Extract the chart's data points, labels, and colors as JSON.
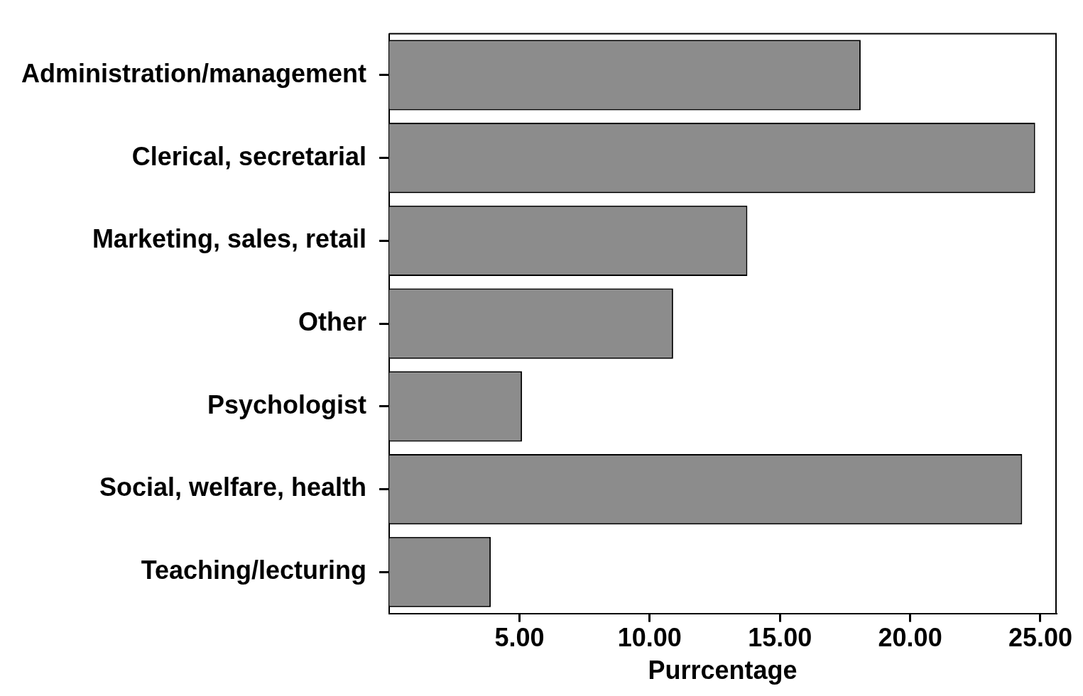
{
  "chart_data": {
    "type": "bar",
    "orientation": "horizontal",
    "xlabel": "Purrcentage",
    "categories": [
      "Administration/management",
      "Clerical, secretarial",
      "Marketing, sales, retail",
      "Other",
      "Psychologist",
      "Social, welfare, health",
      "Teaching/lecturing"
    ],
    "values": [
      18.1,
      24.8,
      13.75,
      10.9,
      5.1,
      24.3,
      3.9
    ],
    "color": "#8c8c8c",
    "xlim": [
      0,
      25.6
    ],
    "xticks": [
      {
        "value": 5,
        "label": "5.00"
      },
      {
        "value": 10,
        "label": "10.00"
      },
      {
        "value": 15,
        "label": "15.00"
      },
      {
        "value": 20,
        "label": "20.00"
      },
      {
        "value": 25,
        "label": "25.00"
      }
    ],
    "grid": false,
    "legend": false
  }
}
